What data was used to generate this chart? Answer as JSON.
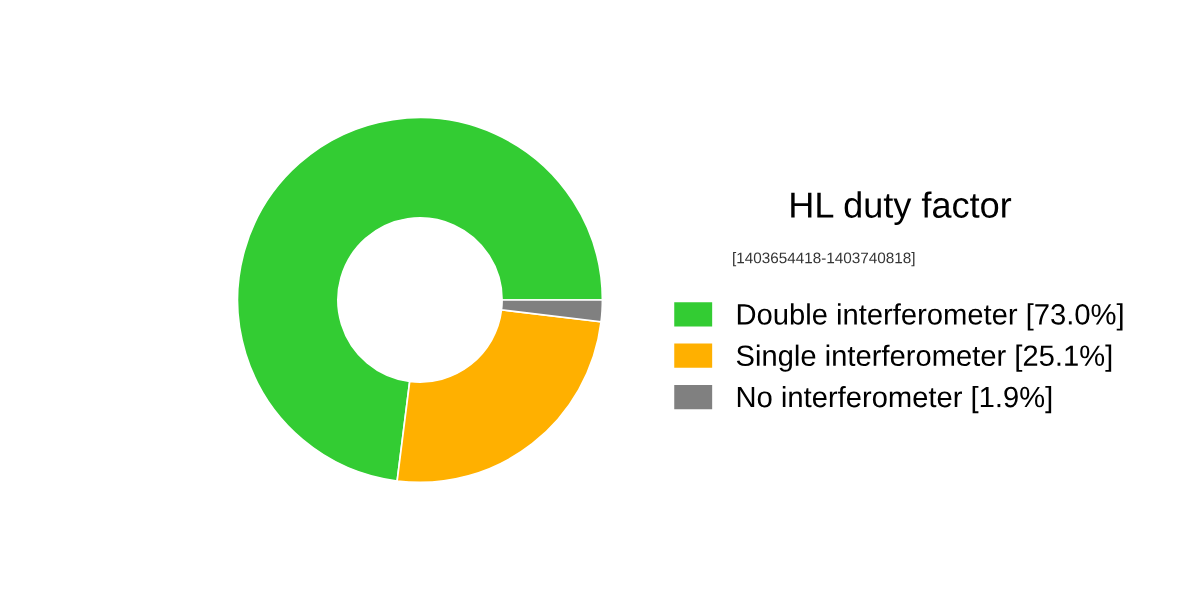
{
  "chart_data": {
    "type": "donut",
    "legend_title": "HL duty factor",
    "annotations": [
      "[1403654418-1403740818]"
    ],
    "categories": [
      "Double interferometer [73.0%]",
      "Single interferometer [25.1%]",
      "No interferometer [1.9%]"
    ],
    "values": [
      73.0,
      25.1,
      1.9
    ],
    "colors": [
      "#33cc33",
      "#ffb000",
      "#808080"
    ],
    "legend": "right"
  }
}
